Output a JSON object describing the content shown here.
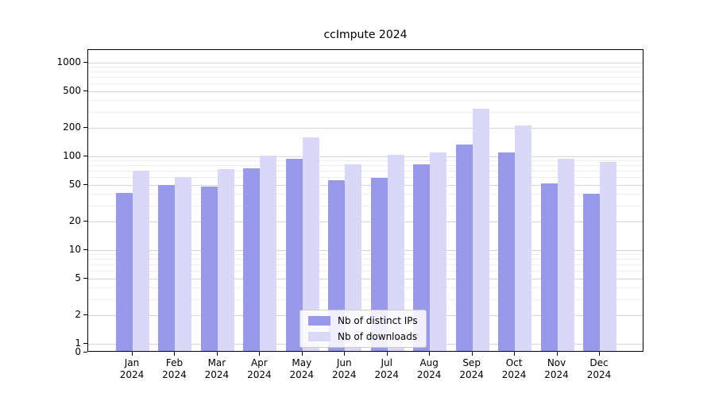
{
  "chart_data": {
    "type": "bar",
    "title": "ccImpute 2024",
    "categories": [
      "Jan 2024",
      "Feb 2024",
      "Mar 2024",
      "Apr 2024",
      "May 2024",
      "Jun 2024",
      "Jul 2024",
      "Aug 2024",
      "Sep 2024",
      "Oct 2024",
      "Nov 2024",
      "Dec 2024"
    ],
    "series": [
      {
        "name": "Nb of distinct IPs",
        "color": "#9999ec",
        "values": [
          41,
          50,
          48,
          74,
          95,
          56,
          59,
          82,
          135,
          110,
          52,
          40
        ]
      },
      {
        "name": "Nb of downloads",
        "color": "#d9d9f7",
        "values": [
          70,
          60,
          73,
          101,
          160,
          83,
          103,
          110,
          320,
          215,
          94,
          88
        ]
      }
    ],
    "yscale": "symlog",
    "ylabel": "",
    "xlabel": "",
    "ylim": [
      0,
      1400
    ],
    "y_ticks": [
      1000,
      500,
      200,
      100,
      50,
      20,
      10,
      5,
      2,
      1,
      0
    ],
    "y_minor_ticks": [
      900,
      800,
      700,
      600,
      400,
      300,
      90,
      80,
      70,
      60,
      40,
      30,
      9,
      8,
      7,
      6,
      4,
      3
    ],
    "grid": "horizontal",
    "legend_position": "lower center",
    "colors": {
      "major_grid": "#d4d4d4",
      "minor_grid": "#ececec",
      "axis": "#000000",
      "background": "#ffffff"
    }
  }
}
